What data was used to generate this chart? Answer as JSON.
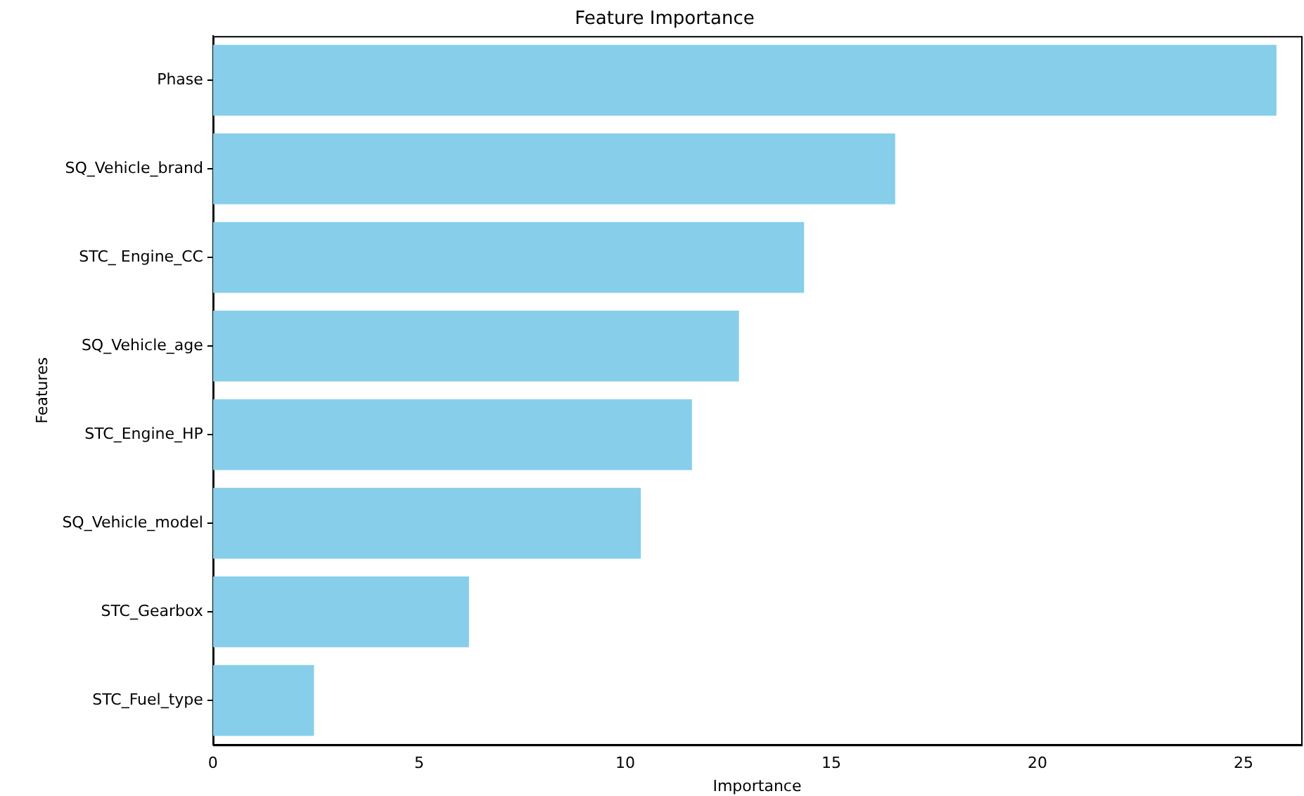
{
  "chart_data": {
    "type": "bar",
    "orientation": "horizontal",
    "title": "Feature Importance",
    "xlabel": "Importance",
    "ylabel": "Features",
    "categories": [
      "Phase",
      "SQ_Vehicle_brand",
      "STC_ Engine_CC",
      "SQ_Vehicle_age",
      "STC_Engine_HP",
      "SQ_Vehicle_model",
      "STC_Gearbox",
      "STC_Fuel_type"
    ],
    "values": [
      25.8,
      16.55,
      14.34,
      12.76,
      11.62,
      10.38,
      6.21,
      2.45
    ],
    "color": "#87ceeb",
    "xlim": [
      0,
      26.4
    ],
    "xticks": [
      0,
      5,
      10,
      15,
      20,
      25
    ],
    "grid": false,
    "legend": false
  }
}
